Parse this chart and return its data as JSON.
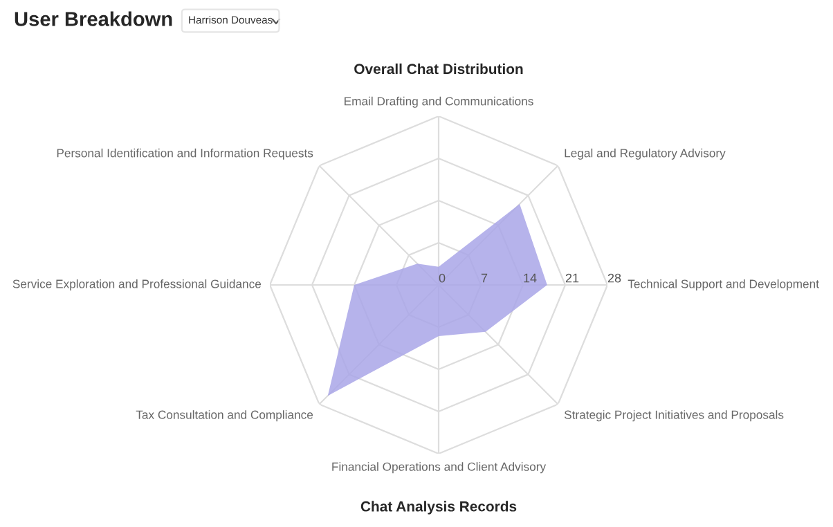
{
  "chart_data": {
    "type": "radar",
    "title": "Overall Chat Distribution",
    "categories": [
      "Email Drafting and Communications",
      "Legal and Regulatory Advisory",
      "Technical Support and Development",
      "Strategic Project Initiatives and Proposals",
      "Financial Operations and Client Advisory",
      "Tax Consultation and Compliance",
      "Service Exploration and Professional Guidance",
      "Personal Identification and Information Requests"
    ],
    "series": [
      {
        "color": "#a9a6e8",
        "values": [
          3,
          19,
          18,
          11,
          8.5,
          26,
          14,
          5
        ]
      }
    ],
    "ylim": [
      0,
      28
    ],
    "yticks": [
      0,
      7,
      14,
      21,
      28
    ],
    "grid": true,
    "annotations": [
      "User Breakdown",
      "Harrison Douveas",
      "Chat Analysis Records"
    ]
  }
}
